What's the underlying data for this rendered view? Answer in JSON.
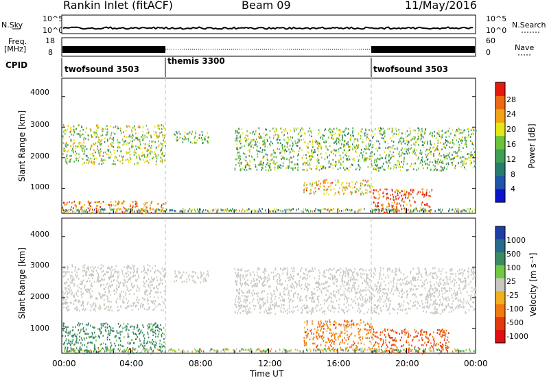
{
  "header": {
    "station": "Rankin Inlet (fitACF)",
    "beam": "Beam 09",
    "date": "11/May/2016"
  },
  "top_panels": {
    "nsky_label": "N.Sky",
    "nsky_ticks": [
      "10^5",
      "10^0"
    ],
    "nsearch_label": "N.Search",
    "nsearch_ticks": [
      "10^5",
      "10^0"
    ],
    "freq_label": "Freq.",
    "freq_unit": "[MHz]",
    "freq_ticks": [
      "18",
      "8"
    ],
    "nave_label": "Nave",
    "nave_ticks": [
      "60",
      "0"
    ],
    "cpid_label": "CPID",
    "cpid_segments": [
      {
        "name": "twofsound 3503",
        "start_hour": 0,
        "end_hour": 6
      },
      {
        "name": "themis 3300",
        "start_hour": 6,
        "end_hour": 18
      },
      {
        "name": "twofsound 3503",
        "start_hour": 18,
        "end_hour": 24
      }
    ]
  },
  "power_panel": {
    "ylabel": "Slant Range [km]",
    "yticks": [
      "4000",
      "3000",
      "2000",
      "1000"
    ],
    "colorbar_label": "Power [dB]",
    "colorbar_ticks": [
      "28",
      "24",
      "20",
      "16",
      "12",
      "8",
      "4"
    ],
    "colorbar_colors": [
      "#0a14c8",
      "#1f54a8",
      "#2a7a6e",
      "#3f9f55",
      "#6bc23d",
      "#e6e618",
      "#f2a316",
      "#ee6a12",
      "#e21a10"
    ]
  },
  "velocity_panel": {
    "ylabel": "Slant Range [km]",
    "yticks": [
      "4000",
      "3000",
      "2000",
      "1000"
    ],
    "colorbar_label": "Velocity [m s⁻¹]",
    "colorbar_ticks": [
      "1000",
      "500",
      "100",
      "25",
      "-25",
      "-100",
      "-500",
      "-1000"
    ],
    "colorbar_colors": [
      "#1f3fa6",
      "#2a6a8a",
      "#3b8a62",
      "#72c845",
      "#c8c8c0",
      "#f0b020",
      "#f07a10",
      "#e23a10",
      "#e01010"
    ]
  },
  "xaxis": {
    "label": "Time UT",
    "ticks": [
      "00:00",
      "04:00",
      "08:00",
      "12:00",
      "16:00",
      "20:00",
      "00:00"
    ]
  },
  "chart_data": {
    "type": "heatmap",
    "title": "Rankin Inlet (fitACF)  Beam 09  11/May/2016",
    "xlabel": "Time UT",
    "ylabel": "Slant Range [km]",
    "xlim_hours": [
      0,
      24
    ],
    "ylim_km": [
      180,
      4600
    ],
    "grid": false,
    "series": [
      {
        "name": "Power [dB]",
        "zlim": [
          0,
          30
        ],
        "echo_regions": [
          {
            "t_start": 0.0,
            "t_end": 6.0,
            "range_min_km": 1800,
            "range_max_km": 3100,
            "typical_value": 16
          },
          {
            "t_start": 0.0,
            "t_end": 6.0,
            "range_min_km": 200,
            "range_max_km": 600,
            "typical_value": 24
          },
          {
            "t_start": 6.5,
            "t_end": 8.5,
            "range_min_km": 2500,
            "range_max_km": 2900,
            "typical_value": 14
          },
          {
            "t_start": 10.0,
            "t_end": 24.0,
            "range_min_km": 1600,
            "range_max_km": 3000,
            "typical_value": 14
          },
          {
            "t_start": 14.0,
            "t_end": 18.0,
            "range_min_km": 800,
            "range_max_km": 1300,
            "typical_value": 20
          },
          {
            "t_start": 18.0,
            "t_end": 21.5,
            "range_min_km": 200,
            "range_max_km": 1000,
            "typical_value": 26
          }
        ]
      },
      {
        "name": "Velocity [m s^-1]",
        "zlim": [
          -1000,
          1000
        ],
        "echo_regions": [
          {
            "t_start": 0.0,
            "t_end": 6.0,
            "range_min_km": 1600,
            "range_max_km": 3100,
            "typical_value": 0
          },
          {
            "t_start": 0.0,
            "t_end": 6.0,
            "range_min_km": 200,
            "range_max_km": 1200,
            "typical_value": 300
          },
          {
            "t_start": 6.5,
            "t_end": 8.5,
            "range_min_km": 2500,
            "range_max_km": 2900,
            "typical_value": 0
          },
          {
            "t_start": 10.0,
            "t_end": 24.0,
            "range_min_km": 1500,
            "range_max_km": 3000,
            "typical_value": 0
          },
          {
            "t_start": 14.0,
            "t_end": 18.0,
            "range_min_km": 300,
            "range_max_km": 1300,
            "typical_value": -300
          },
          {
            "t_start": 18.0,
            "t_end": 22.5,
            "range_min_km": 200,
            "range_max_km": 1000,
            "typical_value": -500
          }
        ]
      }
    ]
  }
}
